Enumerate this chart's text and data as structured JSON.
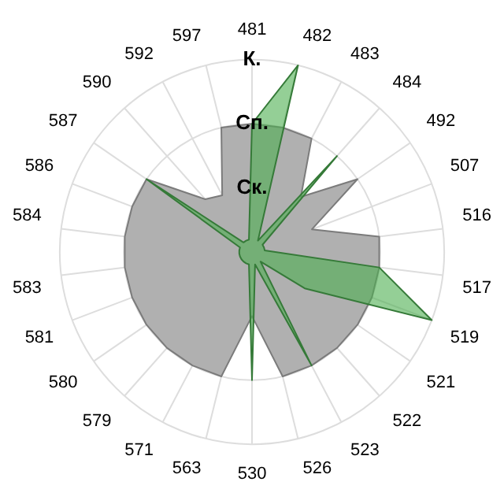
{
  "chart_data": {
    "type": "radar",
    "categories": [
      "481",
      "482",
      "483",
      "484",
      "492",
      "507",
      "516",
      "517",
      "519",
      "521",
      "522",
      "523",
      "526",
      "530",
      "563",
      "571",
      "579",
      "580",
      "581",
      "583",
      "584",
      "586",
      "587",
      "590",
      "592",
      "597"
    ],
    "series": [
      {
        "color": "#b0b0b0",
        "values": [
          2,
          2,
          2,
          1.15,
          2,
          1,
          2,
          2,
          2,
          2,
          2,
          2,
          2,
          1,
          2,
          2,
          2,
          2,
          2,
          2,
          2,
          2,
          2,
          1.1,
          1,
          2
        ]
      },
      {
        "color": "#4caf50",
        "values": [
          2,
          3,
          0.2,
          2,
          0.2,
          0.2,
          0.2,
          2,
          3,
          1,
          0.2,
          2,
          0.2,
          2,
          0.2,
          0.2,
          0.2,
          0.2,
          0.2,
          0.2,
          0.2,
          0.2,
          2,
          0.2,
          0.2,
          0.2
        ]
      }
    ],
    "ylim": [
      0,
      3
    ],
    "yticks": [
      {
        "value": 1,
        "label": "Ск."
      },
      {
        "value": 2,
        "label": "Сп."
      },
      {
        "value": 3,
        "label": "К."
      }
    ],
    "grid": true,
    "legend": false,
    "marker": "none"
  }
}
